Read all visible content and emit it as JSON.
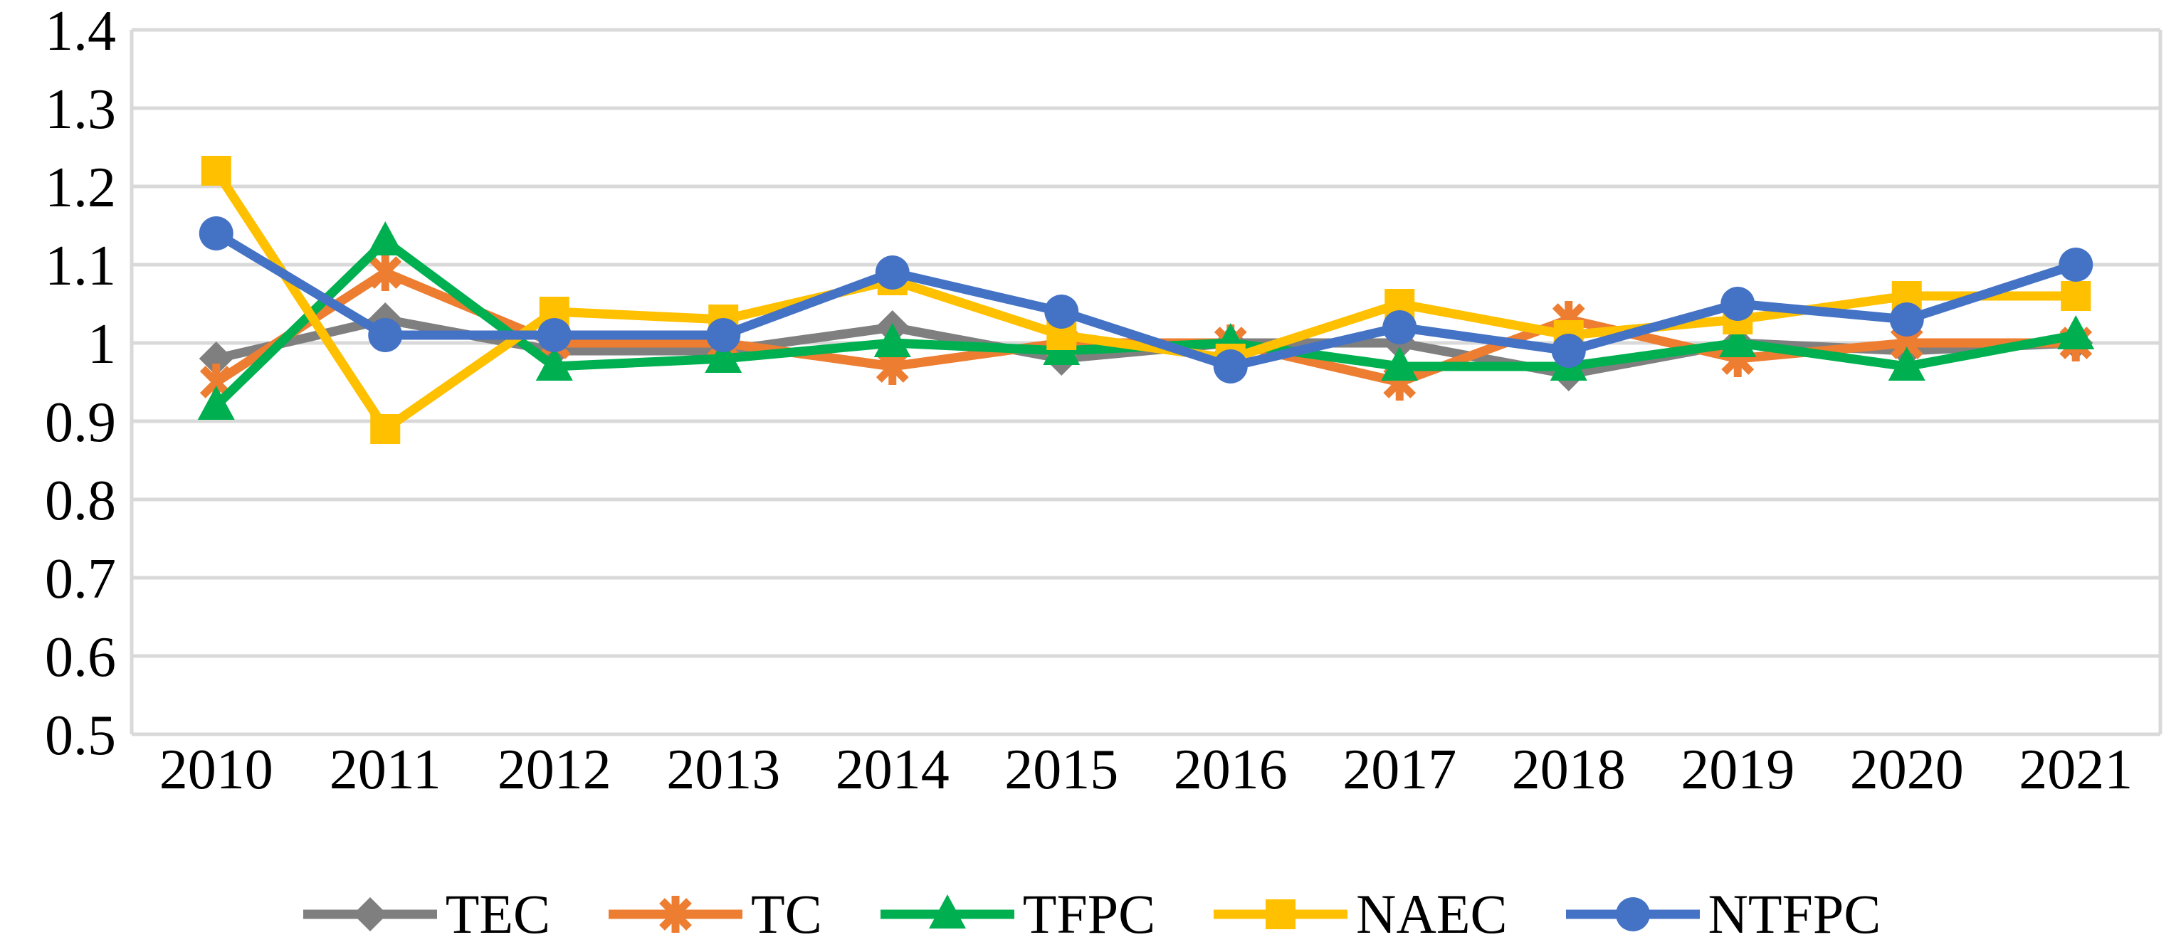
{
  "chart_data": {
    "type": "line",
    "title": "",
    "xlabel": "",
    "ylabel": "",
    "categories": [
      "2010",
      "2011",
      "2012",
      "2013",
      "2014",
      "2015",
      "2016",
      "2017",
      "2018",
      "2019",
      "2020",
      "2021"
    ],
    "series": [
      {
        "name": "TEC",
        "color": "#7F7F7F",
        "marker": "diamond",
        "values": [
          0.98,
          1.03,
          0.99,
          0.99,
          1.02,
          0.98,
          1.0,
          1.0,
          0.96,
          1.0,
          0.99,
          1.0
        ]
      },
      {
        "name": "TC",
        "color": "#ED7D31",
        "marker": "asterisk",
        "values": [
          0.95,
          1.09,
          1.0,
          1.0,
          0.97,
          1.0,
          1.0,
          0.95,
          1.03,
          0.98,
          1.0,
          1.0
        ]
      },
      {
        "name": "TFPC",
        "color": "#00B050",
        "marker": "triangle",
        "values": [
          0.92,
          1.13,
          0.97,
          0.98,
          1.0,
          0.99,
          1.0,
          0.97,
          0.97,
          1.0,
          0.97,
          1.01
        ]
      },
      {
        "name": "NAEC",
        "color": "#FFC000",
        "marker": "square",
        "values": [
          1.22,
          0.89,
          1.04,
          1.03,
          1.08,
          1.01,
          0.98,
          1.05,
          1.01,
          1.03,
          1.06,
          1.06
        ]
      },
      {
        "name": "NTFPC",
        "color": "#4472C4",
        "marker": "circle",
        "values": [
          1.14,
          1.01,
          1.01,
          1.01,
          1.09,
          1.04,
          0.97,
          1.02,
          0.99,
          1.05,
          1.03,
          1.1
        ]
      }
    ],
    "ylim": [
      0.5,
      1.4
    ],
    "ytick_step": 0.1,
    "ytick_labels": [
      "1.4",
      "1.3",
      "1.2",
      "1.1",
      "1",
      "0.9",
      "0.8",
      "0.7",
      "0.6",
      "0.5"
    ],
    "grid": "horizontal",
    "gridline_color": "#D9D9D9",
    "axis_text_color": "#000000",
    "legend_position": "bottom",
    "legend_labels": [
      "TEC",
      "TC",
      "TFPC",
      "NAEC",
      "NTFPC"
    ]
  }
}
